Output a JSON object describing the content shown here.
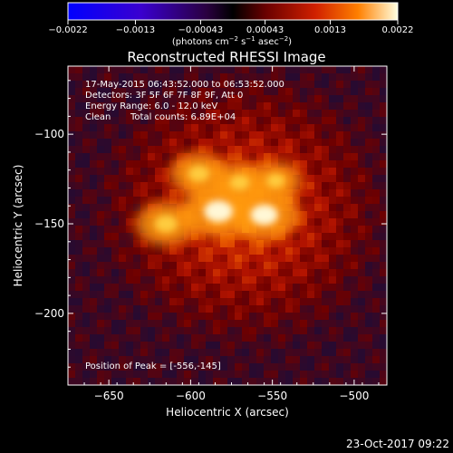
{
  "chart_data": {
    "type": "heatmap",
    "title": "Reconstructed RHESSI Image",
    "xlabel": "Heliocentric X (arcsec)",
    "ylabel": "Heliocentric Y (arcsec)",
    "xlim": [
      -675,
      -480
    ],
    "ylim": [
      -240,
      -62
    ],
    "x_ticks": [
      -650,
      -600,
      -550,
      -500
    ],
    "x_tick_labels": [
      "−650",
      "−600",
      "−550",
      "−500"
    ],
    "y_ticks": [
      -100,
      -150,
      -200
    ],
    "y_tick_labels": [
      "−100",
      "−150",
      "−200"
    ],
    "colorbar": {
      "min": -0.0022,
      "max": 0.0022,
      "ticks": [
        -0.0022,
        -0.0013,
        -0.00043,
        0.00043,
        0.0013,
        0.0022
      ],
      "tick_labels": [
        "−0.0022",
        "−0.0013",
        "−0.00043",
        "0.00043",
        "0.0013",
        "0.0022"
      ],
      "unit_label": "(photons cm",
      "unit_exp1": "−2",
      "unit_mid": " s",
      "unit_exp2": "−1",
      "unit_mid2": " asec",
      "unit_exp3": "−2",
      "unit_end": ")"
    },
    "peak": {
      "x": -556,
      "y": -145
    },
    "sources": [
      {
        "x": -583,
        "y": -143,
        "intensity": 1.0
      },
      {
        "x": -555,
        "y": -145,
        "intensity": 0.95
      },
      {
        "x": -615,
        "y": -150,
        "intensity": 0.8
      },
      {
        "x": -595,
        "y": -122,
        "intensity": 0.75
      },
      {
        "x": -570,
        "y": -127,
        "intensity": 0.7
      },
      {
        "x": -548,
        "y": -126,
        "intensity": 0.65
      }
    ],
    "grid": false,
    "legend": "none"
  },
  "info": {
    "time_range": "17-May-2015 06:43:52.000 to 06:53:52.000",
    "detectors": "Detectors: 3F 5F 6F 7F 8F 9F, Att 0",
    "energy": "Energy Range: 6.0 - 12.0 keV",
    "clean_label": "Clean",
    "total_counts": "Total counts: 6.89E+04",
    "peak_text": "Position of Peak = [-556,-145]"
  },
  "footer": {
    "date": "23-Oct-2017 09:22"
  }
}
